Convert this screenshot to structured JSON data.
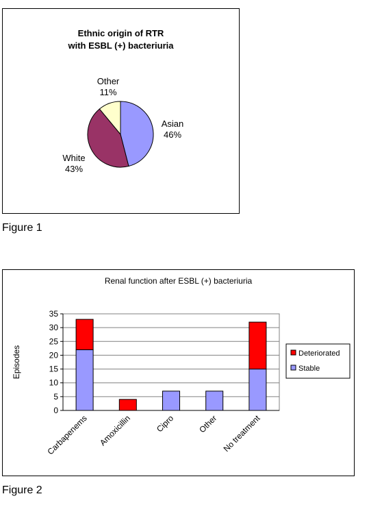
{
  "figure1": {
    "caption": "Figure 1",
    "chart_data": {
      "type": "pie",
      "title_line1": "Ethnic origin  of RTR",
      "title_line2": "with ESBL (+) bacteriuria",
      "slices": [
        {
          "label": "Asian",
          "pct_label": "46%",
          "value": 46,
          "color": "#9999ff"
        },
        {
          "label": "White",
          "pct_label": "43%",
          "value": 43,
          "color": "#993366"
        },
        {
          "label": "Other",
          "pct_label": "11%",
          "value": 11,
          "color": "#ffffcc"
        }
      ]
    }
  },
  "figure2": {
    "caption": "Figure 2",
    "chart_data": {
      "type": "bar",
      "stacked": true,
      "title": "Renal function after ESBL (+) bacteriuria",
      "ylabel": "Episodes",
      "ylim": [
        0,
        35
      ],
      "yticks": [
        0,
        5,
        10,
        15,
        20,
        25,
        30,
        35
      ],
      "categories": [
        "Carbapenems",
        "Amoxicillin",
        "Cipro",
        "Other",
        "No treatment"
      ],
      "series": [
        {
          "name": "Stable",
          "color": "#9999ff",
          "values": [
            22,
            0,
            7,
            7,
            15
          ]
        },
        {
          "name": "Deteriorated",
          "color": "#ff0000",
          "values": [
            11,
            4,
            0,
            0,
            17
          ]
        }
      ],
      "legend_order": [
        "Deteriorated",
        "Stable"
      ],
      "legend_position": "right",
      "grid": true
    }
  }
}
